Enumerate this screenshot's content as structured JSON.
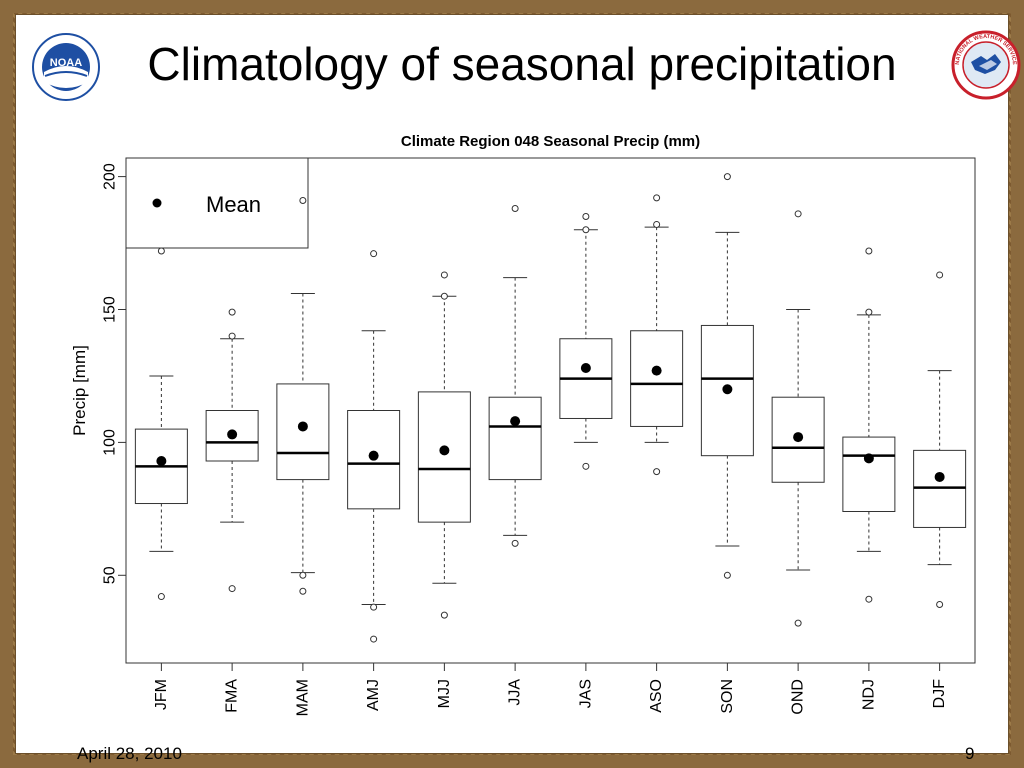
{
  "slide": {
    "title": "Climatology of seasonal precipitation",
    "date": "April 28, 2010",
    "page_number": "9"
  },
  "logos": {
    "left": "noaa-logo",
    "right": "national-weather-service-logo",
    "left_text": "NOAA",
    "right_text": "NATIONAL WEATHER SERVICE"
  },
  "colors": {
    "frame": "#8b6a3e",
    "noaa_blue": "#1e4fa3",
    "nws_red": "#c8202b"
  },
  "chart_data": {
    "type": "boxplot",
    "title": "Climate Region 048 Seasonal Precip (mm)",
    "xlabel": "",
    "ylabel": "Precip [mm]",
    "ylim": [
      17,
      207
    ],
    "yticks": [
      50,
      100,
      150,
      200
    ],
    "legend": {
      "label": "Mean",
      "placement": "top-left"
    },
    "categories": [
      "JFM",
      "FMA",
      "MAM",
      "AMJ",
      "MJJ",
      "JJA",
      "JAS",
      "ASO",
      "SON",
      "OND",
      "NDJ",
      "DJF"
    ],
    "boxes": [
      {
        "low": 59,
        "q1": 77,
        "median": 91,
        "q3": 105,
        "high": 125,
        "mean": 93,
        "outliers": [
          42,
          172
        ]
      },
      {
        "low": 70,
        "q1": 93,
        "median": 100,
        "q3": 112,
        "high": 139,
        "mean": 103,
        "outliers": [
          45,
          140,
          149
        ]
      },
      {
        "low": 51,
        "q1": 86,
        "median": 96,
        "q3": 122,
        "high": 156,
        "mean": 106,
        "outliers": [
          44,
          50,
          191
        ]
      },
      {
        "low": 39,
        "q1": 75,
        "median": 92,
        "q3": 112,
        "high": 142,
        "mean": 95,
        "outliers": [
          26,
          38,
          171
        ]
      },
      {
        "low": 47,
        "q1": 70,
        "median": 90,
        "q3": 119,
        "high": 155,
        "mean": 97,
        "outliers": [
          35,
          155,
          163
        ]
      },
      {
        "low": 65,
        "q1": 86,
        "median": 106,
        "q3": 117,
        "high": 162,
        "mean": 108,
        "outliers": [
          62,
          188
        ]
      },
      {
        "low": 100,
        "q1": 109,
        "median": 124,
        "q3": 139,
        "high": 180,
        "mean": 128,
        "outliers": [
          91,
          180,
          185
        ]
      },
      {
        "low": 100,
        "q1": 106,
        "median": 122,
        "q3": 142,
        "high": 181,
        "mean": 127,
        "outliers": [
          89,
          182,
          192
        ]
      },
      {
        "low": 61,
        "q1": 95,
        "median": 124,
        "q3": 144,
        "high": 179,
        "mean": 120,
        "outliers": [
          50,
          200
        ]
      },
      {
        "low": 52,
        "q1": 85,
        "median": 98,
        "q3": 117,
        "high": 150,
        "mean": 102,
        "outliers": [
          32,
          186
        ]
      },
      {
        "low": 59,
        "q1": 74,
        "median": 95,
        "q3": 102,
        "high": 148,
        "mean": 94,
        "outliers": [
          41,
          149,
          172
        ]
      },
      {
        "low": 54,
        "q1": 68,
        "median": 83,
        "q3": 97,
        "high": 127,
        "mean": 87,
        "outliers": [
          39,
          163
        ]
      }
    ]
  }
}
